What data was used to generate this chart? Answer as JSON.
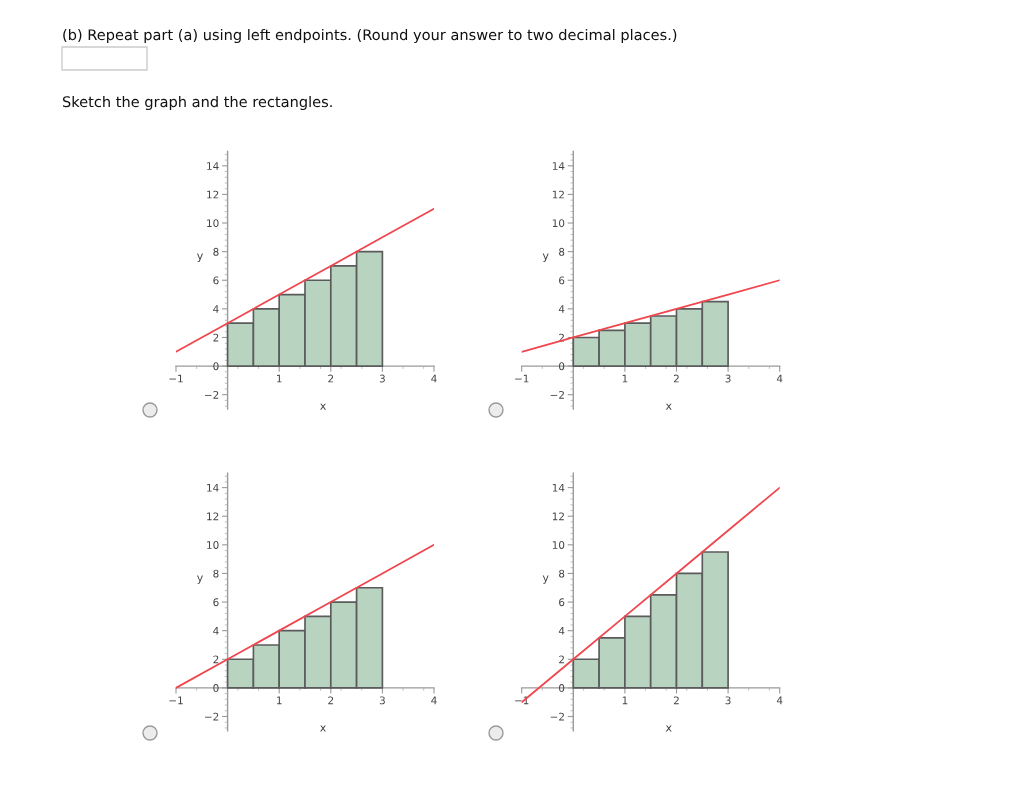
{
  "chart_data": [
    {
      "type": "histogram",
      "annotations": [
        "(b) Repeat part (a) using left endpoints. (Round your answer to two decimal places.)",
        "Sketch the graph and the rectangles."
      ],
      "xlabel": "x",
      "ylabel": "y",
      "xlim": [
        -1,
        4
      ],
      "ylim": [
        -3,
        15
      ],
      "xticks": [
        -1,
        1,
        2,
        3,
        4
      ],
      "yticks": [
        -2,
        0,
        2,
        4,
        6,
        8,
        10,
        12,
        14
      ],
      "grid": false,
      "marker": "none",
      "series": [
        {
          "type": "histogram",
          "bins": [
            0,
            0.5,
            1,
            1.5,
            2,
            2.5,
            3
          ],
          "values": [
            3,
            4,
            5,
            6,
            7,
            8
          ],
          "color": "#b9d3c1"
        },
        {
          "type": "line",
          "x": [
            -1,
            0,
            1,
            2,
            3,
            4
          ],
          "values": [
            1,
            3,
            5,
            7,
            9,
            11
          ],
          "color": "#f0474e"
        }
      ]
    },
    {
      "type": "histogram",
      "xlabel": "x",
      "ylabel": "y",
      "xlim": [
        -1,
        4
      ],
      "ylim": [
        -3,
        15
      ],
      "xticks": [
        -1,
        1,
        2,
        3,
        4
      ],
      "yticks": [
        -2,
        0,
        2,
        4,
        6,
        8,
        10,
        12,
        14
      ],
      "grid": false,
      "marker": "none",
      "series": [
        {
          "type": "histogram",
          "bins": [
            0,
            0.5,
            1,
            1.5,
            2,
            2.5,
            3
          ],
          "values": [
            2,
            2.5,
            3,
            3.5,
            4,
            4.5
          ],
          "color": "#b9d3c1"
        },
        {
          "type": "line",
          "x": [
            -1,
            0,
            1,
            2,
            3,
            4
          ],
          "values": [
            1,
            2,
            3,
            4,
            5,
            6
          ],
          "color": "#f0474e"
        }
      ]
    },
    {
      "type": "histogram",
      "xlabel": "x",
      "ylabel": "y",
      "xlim": [
        -1,
        4
      ],
      "ylim": [
        -3,
        15
      ],
      "xticks": [
        -1,
        1,
        2,
        3,
        4
      ],
      "yticks": [
        -2,
        0,
        2,
        4,
        6,
        8,
        10,
        12,
        14
      ],
      "grid": false,
      "marker": "none",
      "series": [
        {
          "type": "histogram",
          "bins": [
            0,
            0.5,
            1,
            1.5,
            2,
            2.5,
            3
          ],
          "values": [
            2,
            3,
            4,
            5,
            6,
            7
          ],
          "color": "#b9d3c1"
        },
        {
          "type": "line",
          "x": [
            -1,
            0,
            1,
            2,
            3,
            4
          ],
          "values": [
            0,
            2,
            4,
            6,
            8,
            10
          ],
          "color": "#f0474e"
        }
      ]
    },
    {
      "type": "histogram",
      "xlabel": "x",
      "ylabel": "y",
      "xlim": [
        -1,
        4
      ],
      "ylim": [
        -3,
        15
      ],
      "xticks": [
        -1,
        1,
        2,
        3,
        4
      ],
      "yticks": [
        -2,
        0,
        2,
        4,
        6,
        8,
        10,
        12,
        14
      ],
      "grid": false,
      "marker": "none",
      "series": [
        {
          "type": "histogram",
          "bins": [
            0,
            0.5,
            1,
            1.5,
            2,
            2.5,
            3
          ],
          "values": [
            2,
            3.5,
            5,
            6.5,
            8,
            9.5
          ],
          "color": "#b9d3c1"
        },
        {
          "type": "line",
          "x": [
            -1,
            0,
            1,
            2,
            3,
            4
          ],
          "values": [
            -1,
            2,
            5,
            8,
            11,
            14
          ],
          "color": "#f0474e"
        }
      ]
    }
  ]
}
